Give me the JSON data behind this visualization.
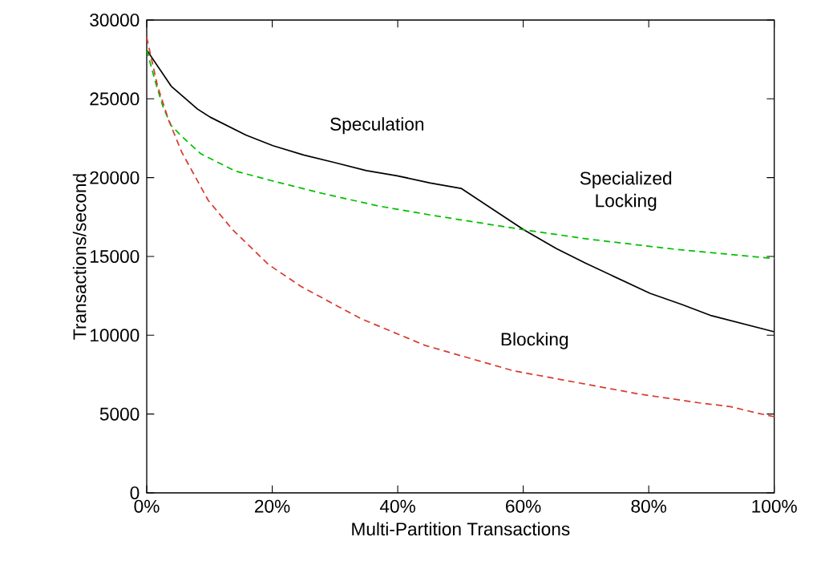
{
  "chart_data": {
    "type": "line",
    "xlabel": "Multi-Partition Transactions",
    "ylabel": "Transactions/second",
    "xlim": [
      0,
      100
    ],
    "ylim": [
      0,
      30000
    ],
    "xticks": [
      {
        "value": 0,
        "label": "0%"
      },
      {
        "value": 20,
        "label": "20%"
      },
      {
        "value": 40,
        "label": "40%"
      },
      {
        "value": 60,
        "label": "60%"
      },
      {
        "value": 80,
        "label": "80%"
      },
      {
        "value": 100,
        "label": "100%"
      }
    ],
    "yticks": [
      0,
      5000,
      10000,
      15000,
      20000,
      25000,
      30000
    ],
    "grid": false,
    "marker": "none",
    "series": [
      {
        "name": "Speculation",
        "color": "#000000",
        "line_style": "solid",
        "x": [
          0,
          3.9,
          8.1,
          10.1,
          15.8,
          20.1,
          25.0,
          29.9,
          35.0,
          39.9,
          45.2,
          50.1,
          60.1,
          65.3,
          69.9,
          80.2,
          85.3,
          90.0,
          100
        ],
        "values": [
          28100,
          25800,
          24350,
          23840,
          22700,
          22030,
          21440,
          20960,
          20450,
          20120,
          19660,
          19320,
          16690,
          15500,
          14580,
          12660,
          11950,
          11240,
          10220
        ]
      },
      {
        "name": "Specialized Locking",
        "color": "#00c000",
        "line_style": "dashed",
        "x": [
          0,
          1.3,
          2.6,
          3.9,
          5.8,
          8.6,
          14.1,
          19.7,
          28.2,
          36.7,
          45.2,
          52.0,
          60.1,
          70.4,
          83.2,
          100
        ],
        "values": [
          28100,
          26180,
          24490,
          23300,
          22540,
          21520,
          20420,
          19830,
          18980,
          18220,
          17630,
          17200,
          16690,
          16100,
          15500,
          14860
        ]
      },
      {
        "name": "Blocking",
        "color": "#d83b2f",
        "line_style": "dashed",
        "x": [
          0,
          1.7,
          3.5,
          5.6,
          9.8,
          13.7,
          19.4,
          24.6,
          34.1,
          44.4,
          58.4,
          68.7,
          78.3,
          87.9,
          93.0,
          97.1,
          100
        ],
        "values": [
          28900,
          25840,
          23640,
          21600,
          18560,
          16690,
          14490,
          13090,
          11060,
          9350,
          7750,
          6990,
          6280,
          5720,
          5470,
          5080,
          4830
        ]
      }
    ]
  }
}
